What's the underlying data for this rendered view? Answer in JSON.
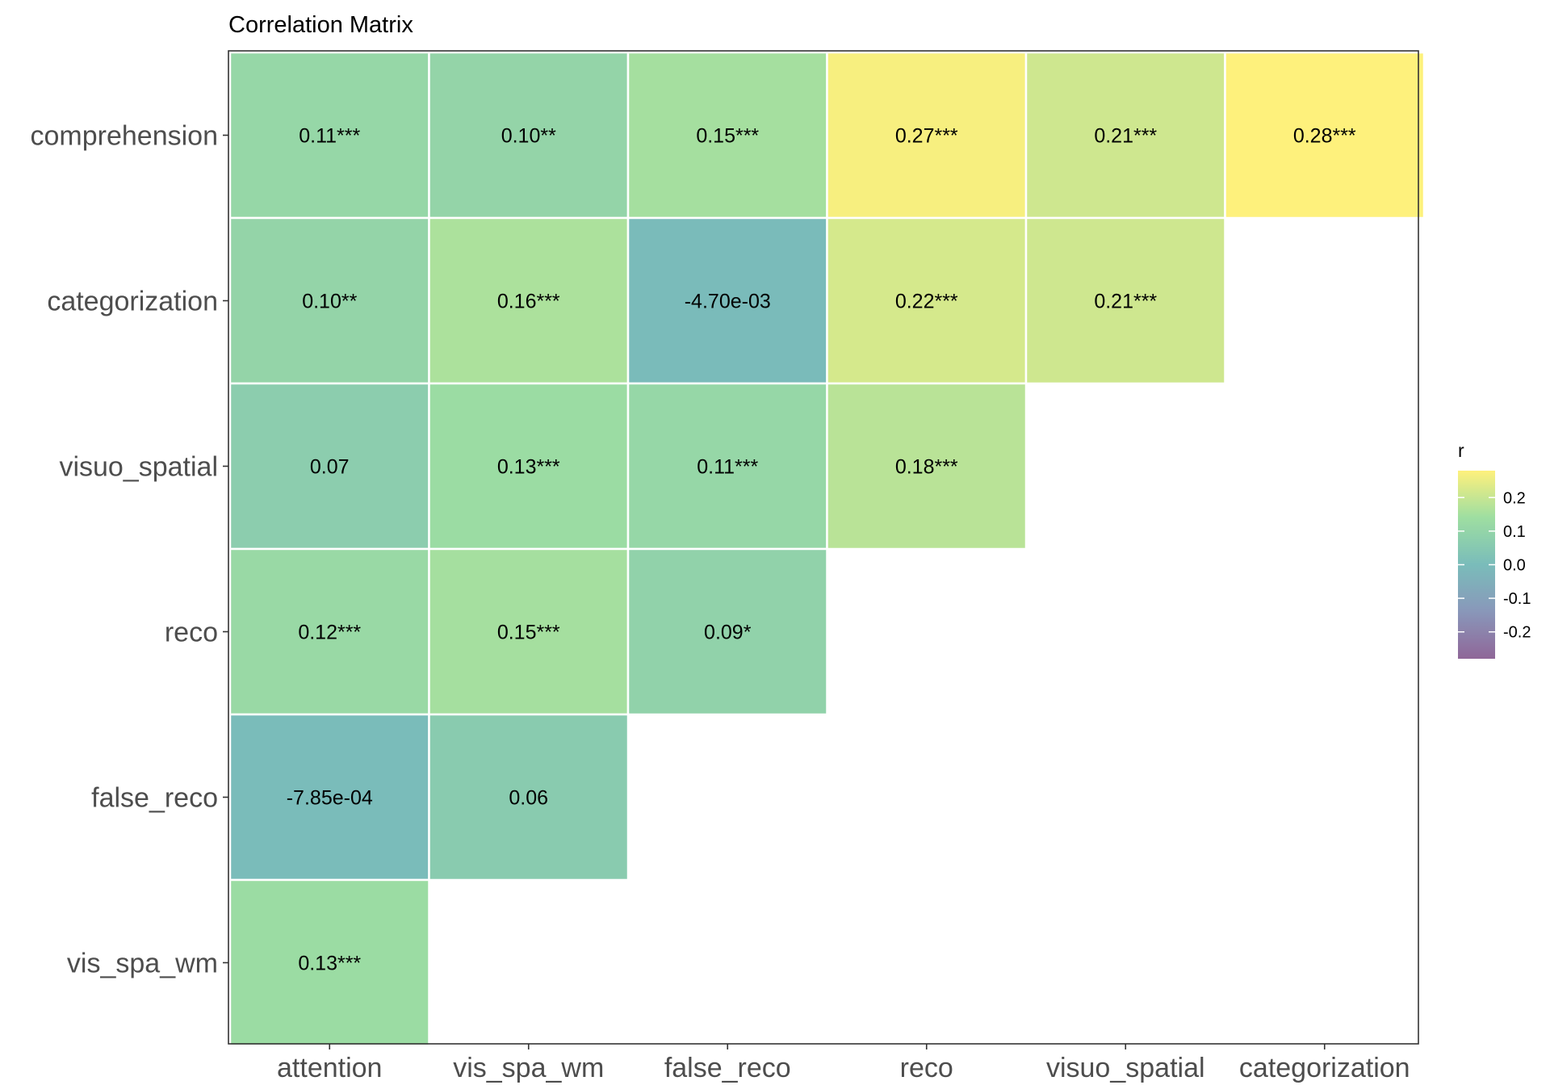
{
  "chart_data": {
    "type": "heatmap",
    "title": "Correlation Matrix",
    "x_categories": [
      "attention",
      "vis_spa_wm",
      "false_reco",
      "reco",
      "visuo_spatial",
      "categorization"
    ],
    "y_categories": [
      "comprehension",
      "categorization",
      "visuo_spatial",
      "reco",
      "false_reco",
      "vis_spa_wm"
    ],
    "cells": [
      {
        "x": "attention",
        "y": "comprehension",
        "value": 0.11,
        "label": "0.11***"
      },
      {
        "x": "vis_spa_wm",
        "y": "comprehension",
        "value": 0.1,
        "label": "0.10**"
      },
      {
        "x": "false_reco",
        "y": "comprehension",
        "value": 0.15,
        "label": "0.15***"
      },
      {
        "x": "reco",
        "y": "comprehension",
        "value": 0.27,
        "label": "0.27***"
      },
      {
        "x": "visuo_spatial",
        "y": "comprehension",
        "value": 0.21,
        "label": "0.21***"
      },
      {
        "x": "categorization",
        "y": "comprehension",
        "value": 0.28,
        "label": "0.28***"
      },
      {
        "x": "attention",
        "y": "categorization",
        "value": 0.1,
        "label": "0.10**"
      },
      {
        "x": "vis_spa_wm",
        "y": "categorization",
        "value": 0.16,
        "label": "0.16***"
      },
      {
        "x": "false_reco",
        "y": "categorization",
        "value": -0.0047,
        "label": "-4.70e-03"
      },
      {
        "x": "reco",
        "y": "categorization",
        "value": 0.22,
        "label": "0.22***"
      },
      {
        "x": "visuo_spatial",
        "y": "categorization",
        "value": 0.21,
        "label": "0.21***"
      },
      {
        "x": "attention",
        "y": "visuo_spatial",
        "value": 0.07,
        "label": "0.07"
      },
      {
        "x": "vis_spa_wm",
        "y": "visuo_spatial",
        "value": 0.13,
        "label": "0.13***"
      },
      {
        "x": "false_reco",
        "y": "visuo_spatial",
        "value": 0.11,
        "label": "0.11***"
      },
      {
        "x": "reco",
        "y": "visuo_spatial",
        "value": 0.18,
        "label": "0.18***"
      },
      {
        "x": "attention",
        "y": "reco",
        "value": 0.12,
        "label": "0.12***"
      },
      {
        "x": "vis_spa_wm",
        "y": "reco",
        "value": 0.15,
        "label": "0.15***"
      },
      {
        "x": "false_reco",
        "y": "reco",
        "value": 0.09,
        "label": "0.09*"
      },
      {
        "x": "attention",
        "y": "false_reco",
        "value": -0.000785,
        "label": "-7.85e-04"
      },
      {
        "x": "vis_spa_wm",
        "y": "false_reco",
        "value": 0.06,
        "label": "0.06"
      },
      {
        "x": "attention",
        "y": "vis_spa_wm",
        "value": 0.13,
        "label": "0.13***"
      }
    ],
    "color_scale": {
      "name": "viridis",
      "domain": [
        -0.28,
        0.28
      ],
      "alpha": 0.6,
      "stops": [
        "#440154",
        "#3b528b",
        "#21908c",
        "#5dc863",
        "#fde725"
      ]
    },
    "legend": {
      "title": "r",
      "placement": "right",
      "ticks": [
        "0.2",
        "0.1",
        "0.0",
        "-0.1",
        "-0.2"
      ],
      "tick_values": [
        0.2,
        0.1,
        0.0,
        -0.1,
        -0.2
      ]
    },
    "grid": false
  }
}
